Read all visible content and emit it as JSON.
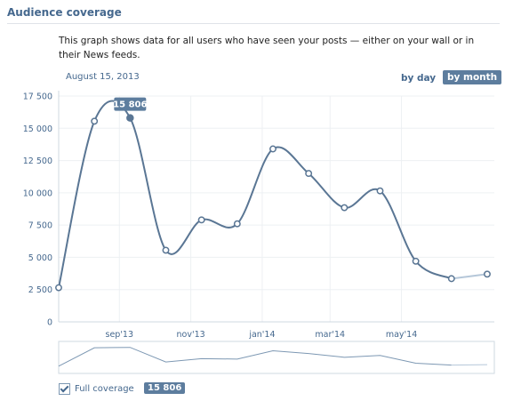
{
  "header": {
    "title": "Audience coverage",
    "description": "This graph shows data for all users who have seen your posts — either on your wall or in their News feeds."
  },
  "controls": {
    "date": "August 15, 2013",
    "by_day": "by day",
    "by_month": "by month",
    "active": "by month"
  },
  "tooltip": {
    "value": "15 806"
  },
  "legend": {
    "label": "Full coverage",
    "checked": true,
    "value": "15 806"
  },
  "colors": {
    "accent": "#45688e",
    "line": "#5a7694",
    "projected": "#b5c7d9",
    "button": "#5d7d9e"
  },
  "chart_data": {
    "type": "line",
    "title": "",
    "xlabel": "",
    "ylabel": "",
    "x_ticks": [
      "sep'13",
      "nov'13",
      "jan'14",
      "mar'14",
      "may'14"
    ],
    "y_ticks": [
      "0",
      "2 500",
      "5 000",
      "7 500",
      "10 000",
      "12 500",
      "15 000",
      "17 500"
    ],
    "ylim": [
      0,
      17500
    ],
    "x_unit": "months since Jul 2013",
    "xlim": [
      0,
      12.2
    ],
    "tick_positions": [
      1.7,
      3.7,
      5.7,
      7.6,
      9.6
    ],
    "series": [
      {
        "name": "Full coverage",
        "x": [
          0,
          1,
          2,
          3,
          4,
          5,
          6,
          7,
          8,
          9,
          10,
          11
        ],
        "y": [
          2650,
          15550,
          15806,
          5550,
          7900,
          7600,
          13400,
          11500,
          8850,
          10150,
          4700,
          3350
        ],
        "highlight_index": 2
      },
      {
        "name": "projected",
        "x": [
          11,
          12
        ],
        "y": [
          3350,
          3700
        ]
      }
    ],
    "grid": true,
    "legend_position": "bottom-left"
  }
}
